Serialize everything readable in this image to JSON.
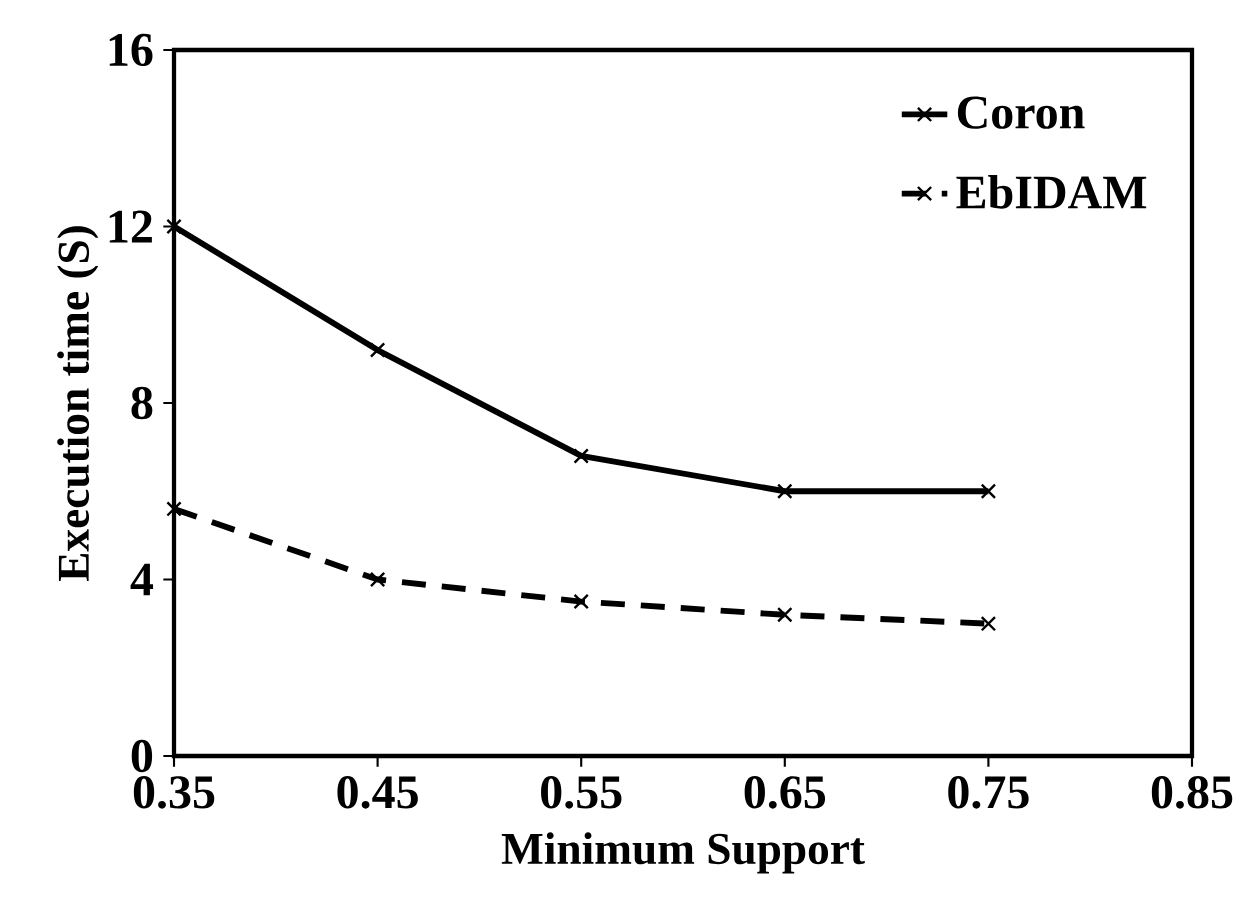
{
  "chart_data": {
    "type": "line",
    "xlabel": "Minimum Support",
    "ylabel": "Execution time (S)",
    "x": [
      0.35,
      0.45,
      0.55,
      0.65,
      0.75
    ],
    "series": [
      {
        "name": "Coron",
        "color": "#000000",
        "values": [
          12,
          9.2,
          6.8,
          6,
          6
        ],
        "marker": "cross",
        "line_style": "solid"
      },
      {
        "name": "EbIDAM",
        "color": "#000000",
        "values": [
          5.6,
          4,
          3.5,
          3.2,
          3.0
        ],
        "marker": "cross",
        "line_style": "dashed"
      }
    ],
    "xlim": [
      0.35,
      0.85
    ],
    "xticks": [
      0.35,
      0.45,
      0.55,
      0.65,
      0.75,
      0.85
    ],
    "ylim": [
      0,
      16
    ],
    "yticks": [
      0,
      4,
      8,
      12,
      16
    ],
    "grid": false,
    "legend": "top right"
  }
}
